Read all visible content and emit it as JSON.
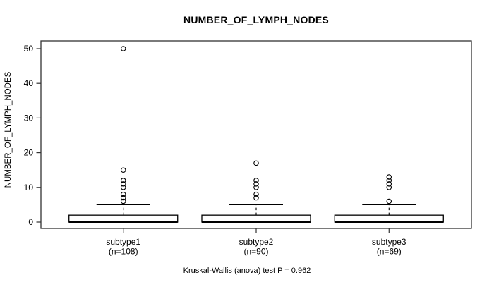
{
  "chart_data": {
    "type": "boxplot",
    "title": "NUMBER_OF_LYMPH_NODES",
    "ylabel": "NUMBER_OF_LYMPH_NODES",
    "xlabel": "",
    "ylim": [
      0,
      50
    ],
    "yticks": [
      0,
      10,
      20,
      30,
      40,
      50
    ],
    "grid": false,
    "legend": "none",
    "frame_color": "#333333",
    "box_fill": "#ffffff",
    "box_stroke": "#000000",
    "groups": [
      {
        "label": "subtype1",
        "n_label": "(n=108)",
        "n": 108,
        "q1": 0,
        "median": 0,
        "q3": 2,
        "whisker_low": 0,
        "whisker_high": 5,
        "outliers": [
          6,
          7,
          8,
          10,
          11,
          12,
          15,
          50
        ]
      },
      {
        "label": "subtype2",
        "n_label": "(n=90)",
        "n": 90,
        "q1": 0,
        "median": 0,
        "q3": 2,
        "whisker_low": 0,
        "whisker_high": 5,
        "outliers": [
          7,
          8,
          10,
          11,
          12,
          17
        ]
      },
      {
        "label": "subtype3",
        "n_label": "(n=69)",
        "n": 69,
        "q1": 0,
        "median": 0,
        "q3": 2,
        "whisker_low": 0,
        "whisker_high": 5,
        "outliers": [
          6,
          10,
          11,
          12,
          13
        ]
      }
    ],
    "stat_test": "Kruskal-Wallis (anova) test P = 0.962",
    "p_value": "0.962"
  }
}
